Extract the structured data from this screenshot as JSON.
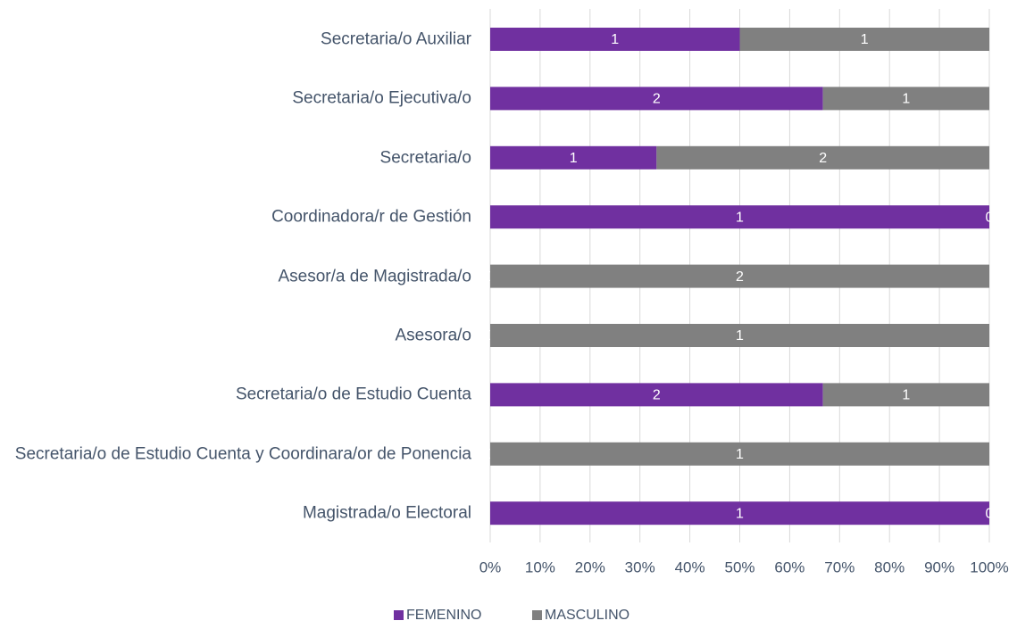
{
  "chart_data": {
    "type": "bar",
    "orientation": "horizontal",
    "stack": "percent",
    "categories": [
      "Secretaria/o Auxiliar",
      "Secretaria/o Ejecutiva/o",
      "Secretaria/o",
      "Coordinadora/r de Gestión",
      "Asesor/a de Magistrada/o",
      "Asesora/o",
      "Secretaria/o de Estudio Cuenta",
      "Secretaria/o de Estudio Cuenta y Coordinara/or de Ponencia",
      "Magistrada/o Electoral"
    ],
    "series": [
      {
        "name": "FEMENINO",
        "color": "#7030a0",
        "values": [
          1,
          2,
          1,
          1,
          0,
          0,
          2,
          0,
          1
        ]
      },
      {
        "name": "MASCULINO",
        "color": "#808080",
        "values": [
          1,
          1,
          2,
          0,
          2,
          1,
          1,
          1,
          0
        ]
      }
    ],
    "xlim": [
      0,
      100
    ],
    "xticks": [
      {
        "value": 0,
        "label": "0%"
      },
      {
        "value": 10,
        "label": "10%"
      },
      {
        "value": 20,
        "label": "20%"
      },
      {
        "value": 30,
        "label": "30%"
      },
      {
        "value": 40,
        "label": "40%"
      },
      {
        "value": 50,
        "label": "50%"
      },
      {
        "value": 60,
        "label": "60%"
      },
      {
        "value": 70,
        "label": "70%"
      },
      {
        "value": 80,
        "label": "80%"
      },
      {
        "value": 90,
        "label": "90%"
      },
      {
        "value": 100,
        "label": "100%"
      }
    ],
    "grid": true,
    "legend": "bottom"
  }
}
